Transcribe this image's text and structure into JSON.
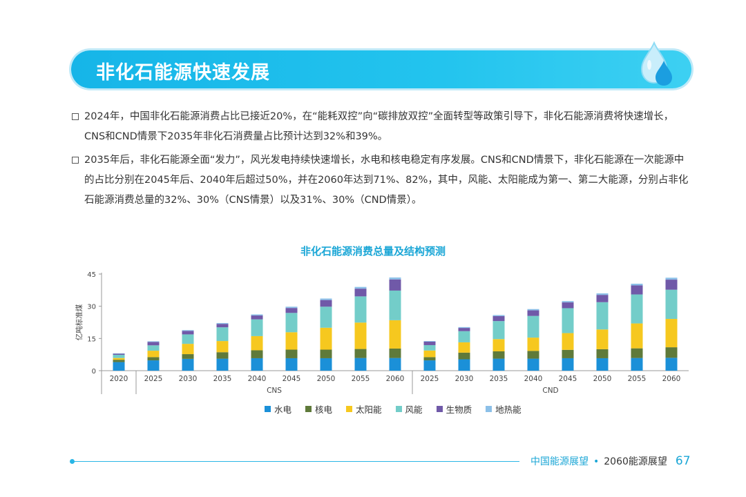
{
  "banner": {
    "title": "非化石能源快速发展"
  },
  "bullets": [
    {
      "text": "2024年，中国非化石能源消费占比已接近20%，在“能耗双控”向“碳排放双控”全面转型等政策引导下，非化石能源消费将快速增长，CNS和CND情景下2035年非化石消费量占比预计达到32%和39%。"
    },
    {
      "text": "2035年后，非化石能源全面“发力”，风光发电持续快速增长，水电和核电稳定有序发展。CNS和CND情景下，非化石能源在一次能源中的占比分别在2045年后、2040年后超过50%，并在2060年达到71%、82%，其中，风能、太阳能成为第一、第二大能源，分别占非化石能源消费总量的32%、30%（CNS情景）以及31%、30%（CND情景）。"
    }
  ],
  "chart_data": {
    "type": "bar",
    "stacked": true,
    "title": "非化石能源消费总量及结构预测",
    "ylabel": "亿吨标准煤",
    "ylim": [
      0,
      45
    ],
    "yticks": [
      0,
      15,
      30,
      45
    ],
    "groups": [
      {
        "name": "",
        "categories": [
          "2020"
        ]
      },
      {
        "name": "CNS",
        "categories": [
          "2025",
          "2030",
          "2035",
          "2040",
          "2045",
          "2050",
          "2055",
          "2060"
        ]
      },
      {
        "name": "CND",
        "categories": [
          "2025",
          "2030",
          "2035",
          "2040",
          "2045",
          "2050",
          "2055",
          "2060"
        ]
      }
    ],
    "series": [
      {
        "name": "水电",
        "color": "#1b90d8",
        "values": [
          4.0,
          4.8,
          5.5,
          5.6,
          5.8,
          5.8,
          5.8,
          5.9,
          5.9,
          4.8,
          5.3,
          5.6,
          5.6,
          5.8,
          5.8,
          5.9,
          6.0
        ]
      },
      {
        "name": "核电",
        "color": "#5f7a3a",
        "values": [
          1.1,
          1.5,
          2.2,
          3.0,
          3.7,
          4.0,
          4.0,
          4.2,
          4.4,
          1.5,
          3.1,
          3.4,
          3.6,
          3.9,
          4.2,
          4.5,
          4.9
        ]
      },
      {
        "name": "太阳能",
        "color": "#f6c81f",
        "values": [
          0.8,
          3.0,
          4.8,
          5.2,
          6.6,
          8.1,
          10.2,
          12.3,
          13.2,
          3.1,
          4.8,
          5.7,
          6.2,
          7.8,
          9.2,
          11.6,
          13.2
        ]
      },
      {
        "name": "风能",
        "color": "#73cdc9",
        "values": [
          1.5,
          2.5,
          4.4,
          6.4,
          7.8,
          9.0,
          9.8,
          12.2,
          13.8,
          2.5,
          5.2,
          8.4,
          10.1,
          11.6,
          12.7,
          13.5,
          13.6
        ]
      },
      {
        "name": "生物质",
        "color": "#7059a8",
        "values": [
          0.5,
          1.6,
          1.6,
          1.6,
          1.8,
          2.3,
          3.1,
          3.6,
          5.2,
          1.6,
          1.5,
          2.3,
          2.6,
          2.7,
          3.4,
          4.2,
          4.7
        ]
      },
      {
        "name": "地热能",
        "color": "#8cc0e8",
        "values": [
          0.2,
          0.3,
          0.4,
          0.4,
          0.5,
          0.6,
          0.7,
          0.8,
          0.9,
          0.3,
          0.4,
          0.5,
          0.6,
          0.6,
          0.7,
          0.8,
          0.9
        ]
      }
    ]
  },
  "footer": {
    "left": "中国能源展望",
    "separator": "•",
    "right": "2060能源展望",
    "page": "67"
  },
  "colors": {
    "accent": "#1aa6d6"
  }
}
